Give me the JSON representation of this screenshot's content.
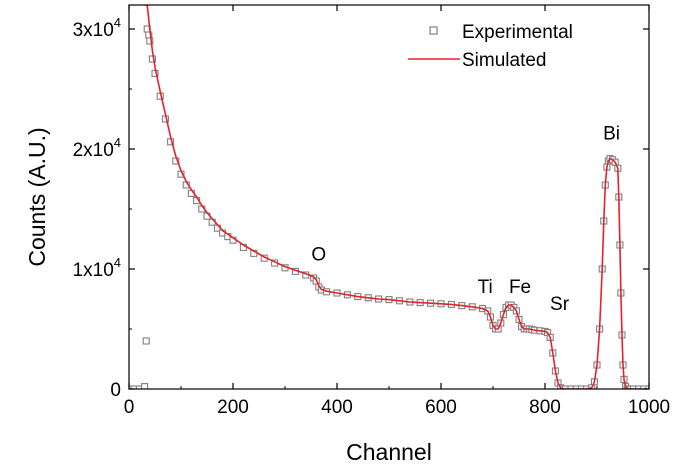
{
  "chart_data": {
    "type": "scatter",
    "title": "",
    "xlabel": "Channel",
    "ylabel": "Counts (A.U.)",
    "xlim": [
      0,
      1000
    ],
    "ylim": [
      0,
      32000
    ],
    "x_ticks": [
      0,
      200,
      400,
      600,
      800,
      1000
    ],
    "y_ticks": [
      {
        "value": 0,
        "label": "0",
        "exp": ""
      },
      {
        "value": 10000,
        "label": "1x10",
        "exp": "4"
      },
      {
        "value": 20000,
        "label": "2x10",
        "exp": "4"
      },
      {
        "value": 30000,
        "label": "3x10",
        "exp": "4"
      }
    ],
    "grid": false,
    "legend_position": "top-right",
    "series": [
      {
        "name": "Experimental",
        "style": "open-square-markers",
        "color": "#808080",
        "x": [
          0,
          10,
          20,
          30,
          33,
          35,
          38,
          40,
          45,
          50,
          60,
          70,
          80,
          90,
          100,
          110,
          120,
          130,
          140,
          150,
          160,
          170,
          180,
          190,
          200,
          220,
          240,
          260,
          280,
          300,
          320,
          340,
          355,
          360,
          365,
          370,
          380,
          400,
          420,
          440,
          460,
          480,
          500,
          520,
          540,
          560,
          580,
          600,
          620,
          640,
          660,
          680,
          690,
          695,
          700,
          705,
          710,
          715,
          720,
          725,
          730,
          735,
          740,
          745,
          750,
          755,
          760,
          765,
          770,
          775,
          780,
          790,
          800,
          805,
          810,
          815,
          820,
          825,
          830,
          835,
          840,
          850,
          860,
          870,
          880,
          890,
          895,
          900,
          905,
          910,
          913,
          916,
          919,
          922,
          925,
          930,
          935,
          940,
          942,
          944,
          946,
          948,
          950,
          952,
          955,
          958,
          960,
          965,
          970,
          980,
          990,
          1000
        ],
        "y": [
          0,
          0,
          0,
          200,
          4000,
          30000,
          29500,
          29000,
          27500,
          26300,
          24400,
          22500,
          20600,
          19000,
          17900,
          17000,
          16300,
          15700,
          15000,
          14400,
          13900,
          13400,
          13000,
          12700,
          12400,
          11800,
          11300,
          10900,
          10500,
          10100,
          9800,
          9500,
          9250,
          9000,
          8500,
          8250,
          8100,
          8000,
          7850,
          7700,
          7600,
          7500,
          7450,
          7350,
          7250,
          7200,
          7150,
          7100,
          7050,
          6950,
          6850,
          6700,
          6500,
          6000,
          5300,
          5000,
          5000,
          5500,
          6200,
          6800,
          7000,
          7000,
          6800,
          6500,
          5800,
          5200,
          5000,
          5000,
          5000,
          4950,
          4900,
          4850,
          4800,
          4700,
          4300,
          3000,
          1500,
          500,
          100,
          0,
          0,
          0,
          0,
          0,
          0,
          100,
          600,
          2000,
          5000,
          10000,
          14000,
          17000,
          18500,
          19000,
          19200,
          19100,
          18900,
          18400,
          16000,
          12000,
          8000,
          4500,
          2000,
          800,
          200,
          0,
          0,
          0,
          0,
          0,
          0,
          0
        ]
      },
      {
        "name": "Simulated",
        "style": "line",
        "color": "#e3232c",
        "x": [
          30,
          35,
          40,
          45,
          50,
          60,
          70,
          80,
          90,
          100,
          110,
          120,
          130,
          140,
          150,
          160,
          170,
          180,
          190,
          200,
          220,
          240,
          260,
          280,
          300,
          320,
          340,
          355,
          360,
          365,
          370,
          380,
          400,
          420,
          440,
          460,
          480,
          500,
          520,
          540,
          560,
          580,
          600,
          620,
          640,
          660,
          680,
          690,
          695,
          700,
          705,
          710,
          715,
          720,
          725,
          730,
          735,
          740,
          745,
          750,
          755,
          760,
          765,
          770,
          775,
          780,
          790,
          800,
          805,
          810,
          815,
          820,
          825,
          830,
          835,
          840,
          850,
          860,
          870,
          880,
          890,
          895,
          900,
          905,
          910,
          913,
          916,
          919,
          922,
          925,
          930,
          935,
          940,
          942,
          944,
          946,
          948,
          950,
          952,
          955,
          958,
          960,
          965,
          970,
          980,
          990,
          1000
        ],
        "y": [
          32000,
          32000,
          30000,
          28200,
          26800,
          24800,
          22900,
          21000,
          19400,
          18200,
          17300,
          16600,
          16000,
          15300,
          14700,
          14200,
          13700,
          13200,
          12900,
          12600,
          12000,
          11500,
          11000,
          10600,
          10200,
          9900,
          9600,
          9350,
          9100,
          8600,
          8300,
          8150,
          8000,
          7850,
          7700,
          7600,
          7500,
          7450,
          7350,
          7250,
          7200,
          7150,
          7100,
          7050,
          6950,
          6850,
          6700,
          6500,
          6000,
          5300,
          5000,
          5000,
          5500,
          6200,
          6800,
          7000,
          7000,
          6800,
          6500,
          5800,
          5200,
          5000,
          5000,
          5000,
          4950,
          4900,
          4850,
          4800,
          4700,
          4300,
          3000,
          1500,
          500,
          100,
          0,
          0,
          0,
          0,
          0,
          0,
          100,
          600,
          2000,
          5000,
          10000,
          14000,
          17000,
          18500,
          19000,
          19200,
          19100,
          18900,
          18400,
          16000,
          12000,
          8000,
          4500,
          2000,
          800,
          200,
          0,
          0,
          0,
          0,
          0,
          0,
          0
        ]
      }
    ],
    "annotations": [
      {
        "text": "O",
        "x": 365,
        "y": 10700
      },
      {
        "text": "Ti",
        "x": 685,
        "y": 8000
      },
      {
        "text": "Fe",
        "x": 752,
        "y": 8000
      },
      {
        "text": "Sr",
        "x": 828,
        "y": 6600
      },
      {
        "text": "Bi",
        "x": 928,
        "y": 20800
      }
    ]
  }
}
